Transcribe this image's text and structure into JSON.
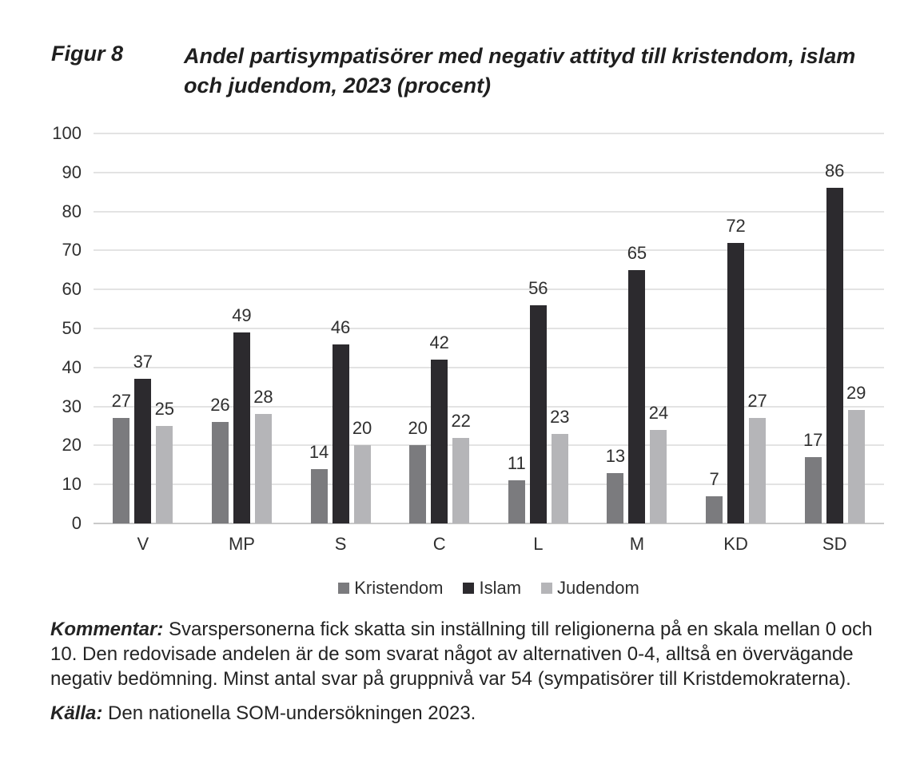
{
  "figure": {
    "label": "Figur 8",
    "title_line1": "Andel partisympatisörer med negativ attityd till kristendom, islam",
    "title_line2": "och judendom, 2023 (procent)"
  },
  "chart_data": {
    "type": "bar",
    "title": "Andel partisympatisörer med negativ attityd till kristendom, islam och judendom, 2023 (procent)",
    "categories": [
      "V",
      "MP",
      "S",
      "C",
      "L",
      "M",
      "KD",
      "SD"
    ],
    "series": [
      {
        "name": "Kristendom",
        "color": "#7b7b7e",
        "values": [
          27,
          26,
          14,
          20,
          11,
          13,
          7,
          17
        ]
      },
      {
        "name": "Islam",
        "color": "#2c2a2e",
        "values": [
          37,
          49,
          46,
          42,
          56,
          65,
          72,
          86
        ]
      },
      {
        "name": "Judendom",
        "color": "#b5b5b8",
        "values": [
          25,
          28,
          20,
          22,
          23,
          24,
          27,
          29
        ]
      }
    ],
    "xlabel": "",
    "ylabel": "",
    "ylim": [
      0,
      100
    ],
    "yticks": [
      0,
      10,
      20,
      30,
      40,
      50,
      60,
      70,
      80,
      90,
      100
    ],
    "grid": true,
    "legend_position": "bottom",
    "bar_value_labels": true
  },
  "notes": {
    "comment_label": "Kommentar:",
    "comment_text": "Svarspersonerna fick skatta sin inställning till religionerna på en skala mellan 0 och 10. Den redovisade andelen är de som svarat något av alternativen 0-4, alltså en övervägande negativ bedömning. Minst antal svar på gruppnivå var 54 (sympatisörer till Kristdemokraterna).",
    "source_label": "Källa:",
    "source_text": "Den nationella SOM-undersökningen 2023."
  }
}
